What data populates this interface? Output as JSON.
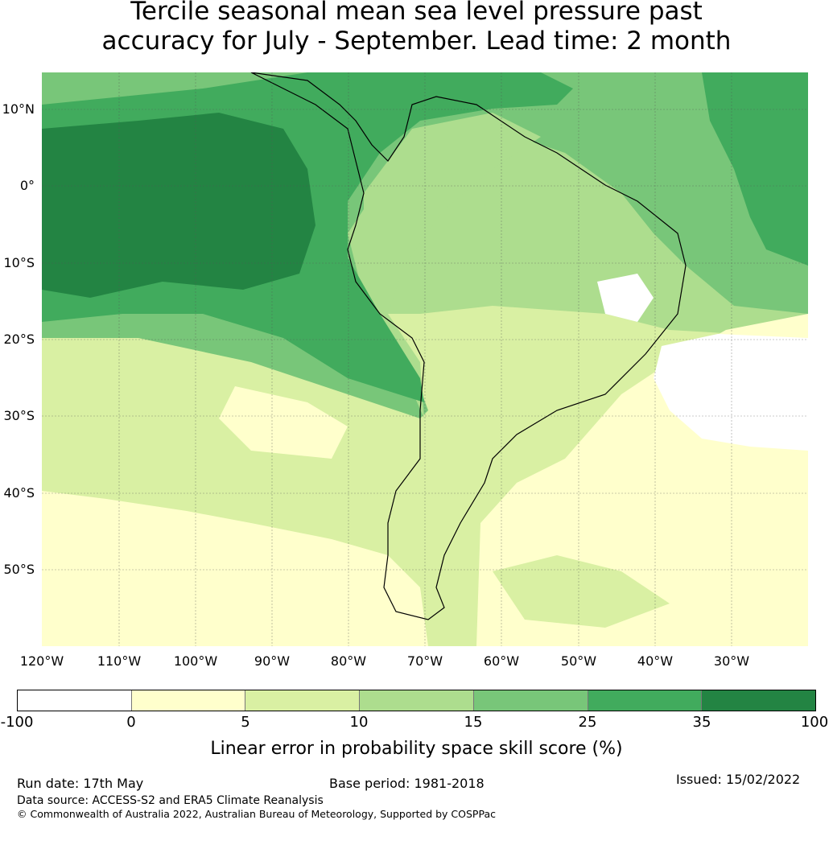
{
  "title": {
    "line1": "Tercile seasonal mean sea level pressure past",
    "line2": "accuracy for July - September. Lead time: 2 month"
  },
  "map": {
    "latitude_labels": [
      "10°N",
      "0°",
      "10°S",
      "20°S",
      "30°S",
      "40°S",
      "50°S"
    ],
    "longitude_labels": [
      "120°W",
      "110°W",
      "100°W",
      "90°W",
      "80°W",
      "70°W",
      "60°W",
      "50°W",
      "40°W",
      "30°W"
    ],
    "region": "South America and adjacent Pacific and Atlantic oceans",
    "colors": {
      "lt0": "#ffffff",
      "c0_5": "#ffffcc",
      "c5_10": "#d9f0a3",
      "c10_15": "#addd8e",
      "c15_25": "#78c679",
      "c25_35": "#41ab5d",
      "c35_100": "#238443",
      "coastline": "#000000"
    }
  },
  "colorbar": {
    "ticks": [
      "-100",
      "0",
      "5",
      "10",
      "15",
      "25",
      "35",
      "100"
    ],
    "colors": [
      "#ffffff",
      "#ffffcc",
      "#d9f0a3",
      "#addd8e",
      "#78c679",
      "#41ab5d",
      "#238443"
    ],
    "label": "Linear error in probability space skill score (%)"
  },
  "footer": {
    "run_date": "Run date: 17th May",
    "base_period": "Base period: 1981-2018",
    "issued": "Issued: 15/02/2022",
    "data_source": "Data source: ACCESS-S2 and ERA5 Climate Reanalysis",
    "copyright": "© Commonwealth of Australia 2022, Australian Bureau of Meteorology, Supported by COSPPac"
  }
}
